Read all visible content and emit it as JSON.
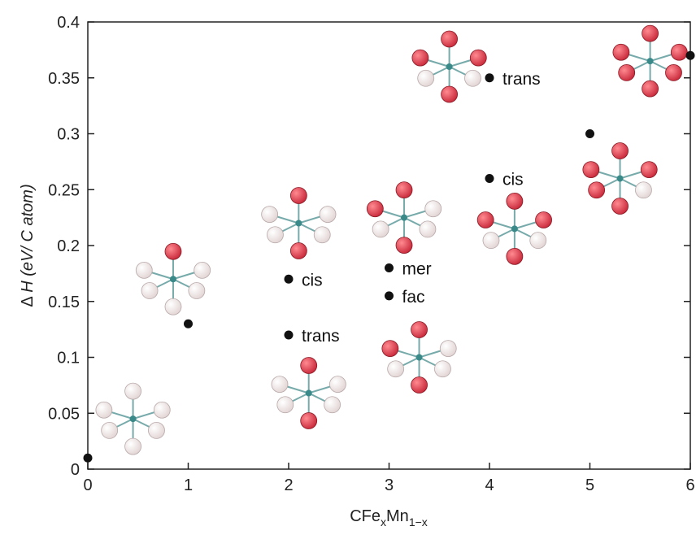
{
  "chart_data": {
    "type": "scatter",
    "xlabel": "CFe",
    "xlabel_sub1": "x",
    "xlabel_mid": "Mn",
    "xlabel_sub2": "1−x",
    "ylabel_prefix": "Δ",
    "ylabel_var": "H",
    "ylabel_units": "(eV/ C atom)",
    "xlim": [
      0,
      6
    ],
    "ylim": [
      0,
      0.4
    ],
    "xticks": [
      "0",
      "1",
      "2",
      "3",
      "4",
      "5",
      "6"
    ],
    "yticks": [
      "0",
      "0.05",
      "0.1",
      "0.15",
      "0.2",
      "0.25",
      "0.3",
      "0.35",
      "0.4"
    ],
    "points": [
      {
        "x": 0,
        "y": 0.01,
        "label": ""
      },
      {
        "x": 1,
        "y": 0.13,
        "label": ""
      },
      {
        "x": 2,
        "y": 0.17,
        "label": "cis"
      },
      {
        "x": 2,
        "y": 0.12,
        "label": "trans"
      },
      {
        "x": 3,
        "y": 0.18,
        "label": "mer"
      },
      {
        "x": 3,
        "y": 0.155,
        "label": "fac"
      },
      {
        "x": 4,
        "y": 0.35,
        "label": "trans"
      },
      {
        "x": 4,
        "y": 0.26,
        "label": "cis"
      },
      {
        "x": 5,
        "y": 0.3,
        "label": ""
      },
      {
        "x": 6,
        "y": 0.37,
        "label": ""
      }
    ],
    "grid": false,
    "colors": {
      "point": "#111111",
      "fe_atom": "#c8283a",
      "mn_atom": "#e2d4d4",
      "c_atom": "#3a8a8a"
    },
    "molecules": [
      {
        "name": "CMn6",
        "x": 0.45,
        "y": 0.045,
        "red": 0
      },
      {
        "name": "CFeMn5",
        "x": 0.85,
        "y": 0.17,
        "red": 1
      },
      {
        "name": "CFe2Mn4-trans",
        "x": 2.2,
        "y": 0.068,
        "red": 2
      },
      {
        "name": "CFe2Mn4-cis",
        "x": 2.1,
        "y": 0.22,
        "red": 2
      },
      {
        "name": "CFe3Mn3-fac",
        "x": 3.3,
        "y": 0.1,
        "red": 3
      },
      {
        "name": "CFe3Mn3-mer",
        "x": 3.15,
        "y": 0.225,
        "red": 3
      },
      {
        "name": "CFe4Mn2-trans",
        "x": 3.6,
        "y": 0.36,
        "red": 4
      },
      {
        "name": "CFe4Mn2-cis",
        "x": 4.25,
        "y": 0.215,
        "red": 4
      },
      {
        "name": "CFe5Mn",
        "x": 5.3,
        "y": 0.26,
        "red": 5
      },
      {
        "name": "CFe6",
        "x": 5.6,
        "y": 0.365,
        "red": 6
      }
    ]
  }
}
